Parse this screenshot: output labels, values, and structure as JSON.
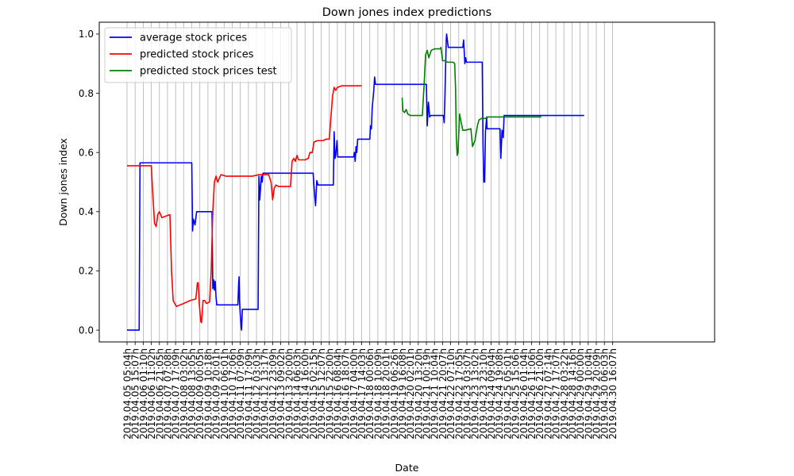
{
  "chart_data": {
    "type": "line",
    "title": "Down jones index predictions",
    "xlabel": "Date",
    "ylabel": "Down jones index",
    "ylim": [
      -0.04,
      1.04
    ],
    "yticks": [
      0.0,
      0.2,
      0.4,
      0.6,
      0.8,
      1.0
    ],
    "ytick_labels": [
      "0.0",
      "0.2",
      "0.4",
      "0.6",
      "0.8",
      "1.0"
    ],
    "grid": "vertical",
    "legend_position": "top-left",
    "xticks": [
      "2019.04.05  05:04h",
      "2019.04.05  15:07h",
      "2019.04.06  01:10h",
      "2019.04.06  11:02h",
      "2019.04.06  21:05h",
      "2019.04.07  07:08h",
      "2019.04.07  17:09h",
      "2019.04.08  03:02h",
      "2019.04.08  13:05h",
      "2019.04.09  00:05h",
      "2019.04.09  10:18h",
      "2019.04.09  20:01h",
      "2019.04.10  06:01h",
      "2019.04.10  17:06h",
      "2019.04.11  07:09h",
      "2019.04.11  17:09h",
      "2019.04.12  03:03h",
      "2019.04.12  13:17h",
      "2019.04.12  23:09h",
      "2019.04.13  09:02h",
      "2019.04.13  20:00h",
      "2019.04.14  06:03h",
      "2019.04.14  16:00h",
      "2019.04.15  02:15h",
      "2019.04.15  12:07h",
      "2019.04.15  22:00h",
      "2019.04.16  08:04h",
      "2019.04.16  18:07h",
      "2019.04.17  04:00h",
      "2019.04.17  14:03h",
      "2019.04.18  00:06h",
      "2019.04.18  10:09h",
      "2019.04.18  20:01h",
      "2019.04.19  06:26h",
      "2019.04.19  16:08h",
      "2019.04.20  02:01h",
      "2019.04.20  13:20h",
      "2019.04.21  00:19h",
      "2019.04.21  10:04h",
      "2019.04.21  20:07h",
      "2019.04.22  07:10h",
      "2019.04.22  17:05h",
      "2019.04.23  03:07h",
      "2019.04.23  13:02h",
      "2019.04.23  23:10h",
      "2019.04.24  09:04h",
      "2019.04.24  19:08h",
      "2019.04.25  05:01h",
      "2019.04.25  15:06h",
      "2019.04.26  01:04h",
      "2019.04.26  11:06h",
      "2019.04.26  21:00h",
      "2019.04.27  07:14h",
      "2019.04.27  17:07h",
      "2019.04.28  03:22h",
      "2019.04.28  14:16h",
      "2019.04.29  00:00h",
      "2019.04.29  10:04h",
      "2019.04.29  20:09h",
      "2019.04.30  06:03h",
      "2019.04.30  16:07h"
    ],
    "series": [
      {
        "name": "average stock prices",
        "color": "#0000ff",
        "points": [
          [
            0,
            0.0
          ],
          [
            1.5,
            0.0
          ],
          [
            1.6,
            0.565
          ],
          [
            8.0,
            0.565
          ],
          [
            8.1,
            0.335
          ],
          [
            8.2,
            0.375
          ],
          [
            8.4,
            0.355
          ],
          [
            8.6,
            0.4
          ],
          [
            10.5,
            0.4
          ],
          [
            10.6,
            0.14
          ],
          [
            10.7,
            0.17
          ],
          [
            10.8,
            0.135
          ],
          [
            10.9,
            0.165
          ],
          [
            11.0,
            0.11
          ],
          [
            11.1,
            0.085
          ],
          [
            13.7,
            0.085
          ],
          [
            13.8,
            0.16
          ],
          [
            13.85,
            0.18
          ],
          [
            13.9,
            0.1
          ],
          [
            14.0,
            0.05
          ],
          [
            14.1,
            0.01
          ],
          [
            14.15,
            0.0
          ],
          [
            14.25,
            0.07
          ],
          [
            16.2,
            0.07
          ],
          [
            16.3,
            0.52
          ],
          [
            16.4,
            0.44
          ],
          [
            16.6,
            0.52
          ],
          [
            16.7,
            0.5
          ],
          [
            16.8,
            0.53
          ],
          [
            23.0,
            0.53
          ],
          [
            23.2,
            0.45
          ],
          [
            23.3,
            0.42
          ],
          [
            23.45,
            0.505
          ],
          [
            23.6,
            0.49
          ],
          [
            25.5,
            0.49
          ],
          [
            25.6,
            0.67
          ],
          [
            25.7,
            0.58
          ],
          [
            25.8,
            0.59
          ],
          [
            25.95,
            0.64
          ],
          [
            26.05,
            0.585
          ],
          [
            28.0,
            0.585
          ],
          [
            28.1,
            0.6
          ],
          [
            28.2,
            0.57
          ],
          [
            28.3,
            0.62
          ],
          [
            28.4,
            0.6
          ],
          [
            28.5,
            0.645
          ],
          [
            30.0,
            0.645
          ],
          [
            30.1,
            0.69
          ],
          [
            30.2,
            0.68
          ],
          [
            30.3,
            0.75
          ],
          [
            30.5,
            0.81
          ],
          [
            30.6,
            0.855
          ],
          [
            30.7,
            0.83
          ],
          [
            37.0,
            0.83
          ],
          [
            37.1,
            0.69
          ],
          [
            37.25,
            0.77
          ],
          [
            37.4,
            0.72
          ],
          [
            37.55,
            0.725
          ],
          [
            39.1,
            0.725
          ],
          [
            39.2,
            0.7
          ],
          [
            39.3,
            0.8
          ],
          [
            39.45,
            0.98
          ],
          [
            39.5,
            1.0
          ],
          [
            39.7,
            0.955
          ],
          [
            41.5,
            0.955
          ],
          [
            41.6,
            0.98
          ],
          [
            41.75,
            0.9
          ],
          [
            41.85,
            0.92
          ],
          [
            41.95,
            0.905
          ],
          [
            43.9,
            0.905
          ],
          [
            44.0,
            0.62
          ],
          [
            44.1,
            0.5
          ],
          [
            44.2,
            0.5
          ],
          [
            44.3,
            0.67
          ],
          [
            44.45,
            0.72
          ],
          [
            44.5,
            0.68
          ],
          [
            46.1,
            0.68
          ],
          [
            46.2,
            0.58
          ],
          [
            46.35,
            0.675
          ],
          [
            46.5,
            0.65
          ],
          [
            46.6,
            0.725
          ],
          [
            56.5,
            0.725
          ]
        ]
      },
      {
        "name": "predicted stock prices",
        "color": "#ff0000",
        "points": [
          [
            0,
            0.555
          ],
          [
            3.0,
            0.555
          ],
          [
            3.2,
            0.45
          ],
          [
            3.4,
            0.36
          ],
          [
            3.6,
            0.35
          ],
          [
            3.8,
            0.39
          ],
          [
            4.0,
            0.4
          ],
          [
            4.3,
            0.38
          ],
          [
            5.3,
            0.39
          ],
          [
            5.5,
            0.2
          ],
          [
            5.7,
            0.1
          ],
          [
            6.1,
            0.08
          ],
          [
            7.0,
            0.09
          ],
          [
            7.8,
            0.1
          ],
          [
            8.5,
            0.105
          ],
          [
            8.7,
            0.16
          ],
          [
            8.8,
            0.16
          ],
          [
            8.9,
            0.1
          ],
          [
            9.1,
            0.03
          ],
          [
            9.2,
            0.025
          ],
          [
            9.4,
            0.1
          ],
          [
            9.6,
            0.1
          ],
          [
            9.8,
            0.09
          ],
          [
            10.2,
            0.095
          ],
          [
            10.4,
            0.2
          ],
          [
            10.6,
            0.4
          ],
          [
            10.8,
            0.5
          ],
          [
            11.0,
            0.52
          ],
          [
            11.2,
            0.5
          ],
          [
            11.6,
            0.525
          ],
          [
            12.2,
            0.52
          ],
          [
            13.7,
            0.52
          ],
          [
            15.5,
            0.52
          ],
          [
            16.3,
            0.525
          ],
          [
            17.5,
            0.525
          ],
          [
            17.8,
            0.5
          ],
          [
            18.0,
            0.44
          ],
          [
            18.2,
            0.48
          ],
          [
            18.4,
            0.49
          ],
          [
            18.7,
            0.485
          ],
          [
            20.2,
            0.485
          ],
          [
            20.4,
            0.57
          ],
          [
            20.6,
            0.58
          ],
          [
            20.8,
            0.57
          ],
          [
            21.0,
            0.59
          ],
          [
            21.2,
            0.575
          ],
          [
            22.0,
            0.575
          ],
          [
            22.4,
            0.58
          ],
          [
            22.6,
            0.6
          ],
          [
            22.9,
            0.6
          ],
          [
            23.1,
            0.635
          ],
          [
            23.5,
            0.64
          ],
          [
            24.2,
            0.64
          ],
          [
            24.6,
            0.645
          ],
          [
            25.0,
            0.645
          ],
          [
            25.2,
            0.72
          ],
          [
            25.4,
            0.79
          ],
          [
            25.6,
            0.82
          ],
          [
            25.8,
            0.81
          ],
          [
            26.0,
            0.82
          ],
          [
            26.5,
            0.825
          ],
          [
            29.0,
            0.825
          ]
        ]
      },
      {
        "name": "predicted stock prices test",
        "color": "#008000",
        "points": [
          [
            34.0,
            0.785
          ],
          [
            34.1,
            0.74
          ],
          [
            34.3,
            0.735
          ],
          [
            34.5,
            0.745
          ],
          [
            34.7,
            0.73
          ],
          [
            35.0,
            0.725
          ],
          [
            36.5,
            0.725
          ],
          [
            36.7,
            0.82
          ],
          [
            36.9,
            0.93
          ],
          [
            37.1,
            0.945
          ],
          [
            37.3,
            0.92
          ],
          [
            37.6,
            0.945
          ],
          [
            38.0,
            0.95
          ],
          [
            38.7,
            0.95
          ],
          [
            38.8,
            0.955
          ],
          [
            39.0,
            0.91
          ],
          [
            39.3,
            0.91
          ],
          [
            39.6,
            0.905
          ],
          [
            40.3,
            0.905
          ],
          [
            40.5,
            0.9
          ],
          [
            40.6,
            0.82
          ],
          [
            40.7,
            0.65
          ],
          [
            40.8,
            0.59
          ],
          [
            40.9,
            0.6
          ],
          [
            41.1,
            0.73
          ],
          [
            41.2,
            0.715
          ],
          [
            41.5,
            0.675
          ],
          [
            41.8,
            0.675
          ],
          [
            42.5,
            0.68
          ],
          [
            42.7,
            0.62
          ],
          [
            43.0,
            0.64
          ],
          [
            43.3,
            0.69
          ],
          [
            43.5,
            0.71
          ],
          [
            43.8,
            0.715
          ],
          [
            44.3,
            0.715
          ],
          [
            44.6,
            0.72
          ],
          [
            45.5,
            0.72
          ],
          [
            51.2,
            0.72
          ]
        ]
      }
    ]
  }
}
